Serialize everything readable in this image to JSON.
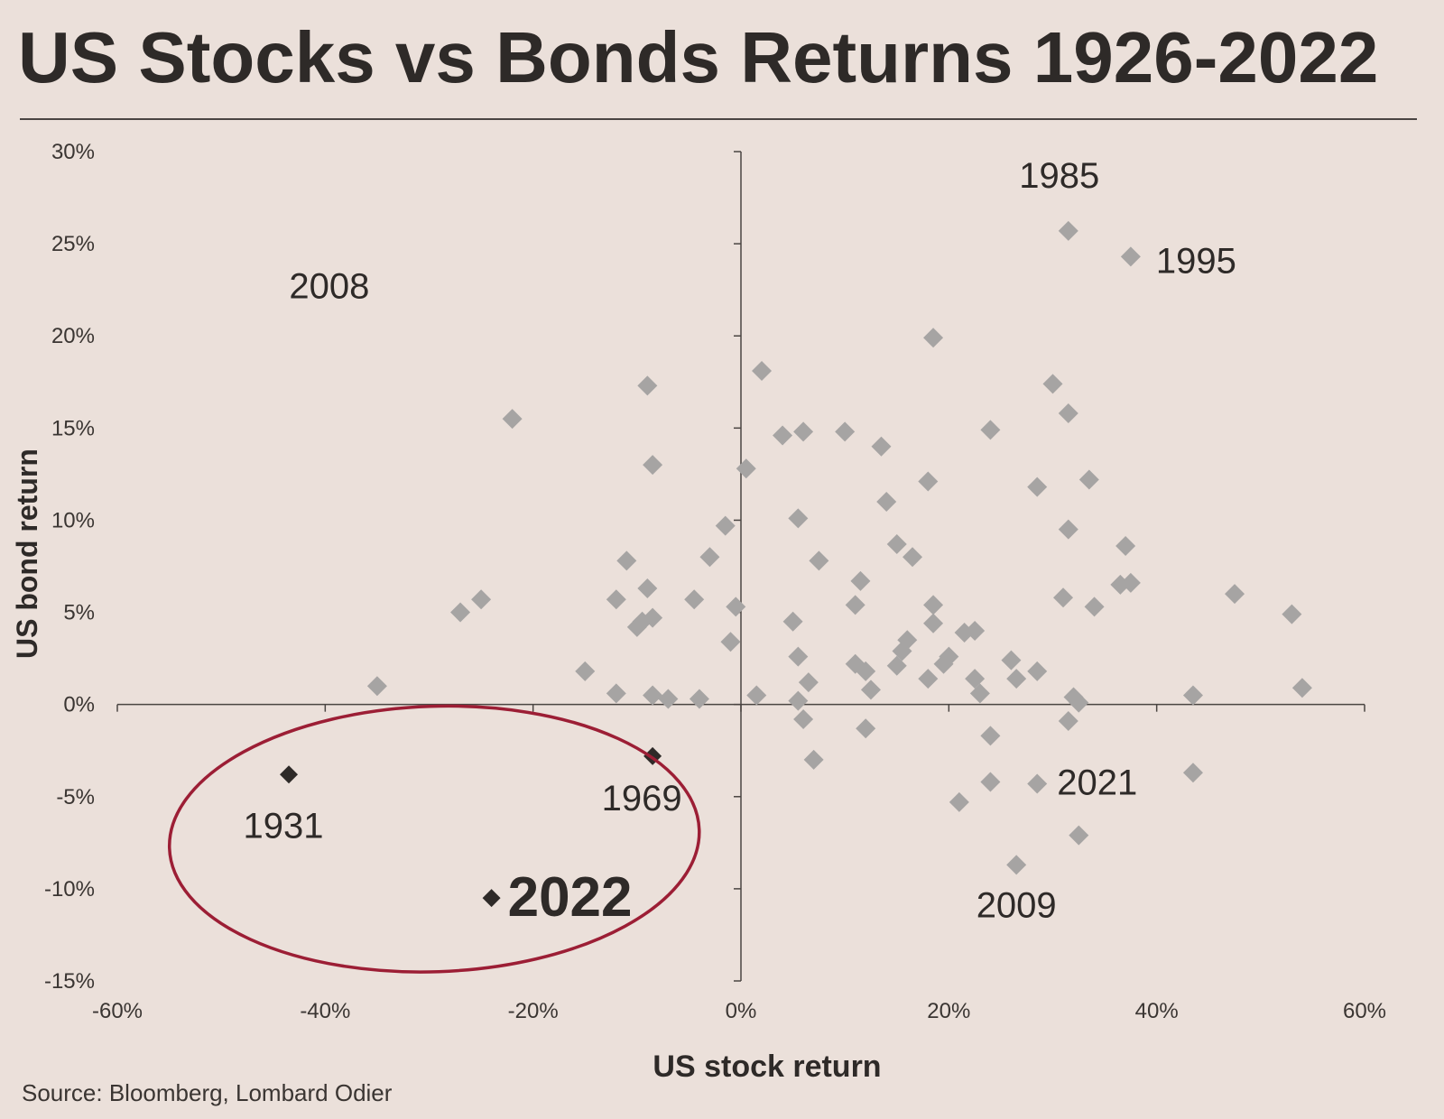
{
  "chart_data": {
    "type": "scatter",
    "title": "US Stocks vs Bonds Returns 1926-2022",
    "xlabel": "US stock return",
    "ylabel": "US bond return",
    "source": "Source: Bloomberg, Lombard Odier",
    "xlim": [
      -60,
      60
    ],
    "ylim": [
      -15,
      30
    ],
    "x_ticks": [
      {
        "value": -60,
        "label": "-60%"
      },
      {
        "value": -40,
        "label": "-40%"
      },
      {
        "value": -20,
        "label": "-20%"
      },
      {
        "value": 0,
        "label": "0%"
      },
      {
        "value": 20,
        "label": "20%"
      },
      {
        "value": 40,
        "label": "40%"
      },
      {
        "value": 60,
        "label": "60%"
      }
    ],
    "y_ticks": [
      {
        "value": 30,
        "label": "30%"
      },
      {
        "value": 25,
        "label": "25%"
      },
      {
        "value": 20,
        "label": "20%"
      },
      {
        "value": 15,
        "label": "15%"
      },
      {
        "value": 10,
        "label": "10%"
      },
      {
        "value": 5,
        "label": "5%"
      },
      {
        "value": 0,
        "label": "0%"
      },
      {
        "value": -5,
        "label": "-5%"
      },
      {
        "value": -10,
        "label": "-10%"
      },
      {
        "value": -15,
        "label": "-15%"
      }
    ],
    "grid": false,
    "colors": {
      "background": "#ebe0da",
      "point": "#a6a4a3",
      "highlight": "#2e2a28",
      "ellipse": "#9c1e35",
      "axis": "#4a4542"
    },
    "series": [
      {
        "points": [
          [
            -35,
            1.0
          ],
          [
            -27,
            5.0
          ],
          [
            -25,
            5.7
          ],
          [
            -22,
            15.5
          ],
          [
            -15,
            1.8
          ],
          [
            -12,
            0.6
          ],
          [
            -12,
            5.7
          ],
          [
            -11,
            7.8
          ],
          [
            -10,
            4.2
          ],
          [
            -9.5,
            4.5
          ],
          [
            -9,
            17.3
          ],
          [
            -9,
            6.3
          ],
          [
            -8.5,
            4.7
          ],
          [
            -8.5,
            13.0
          ],
          [
            -8.5,
            0.5
          ],
          [
            -7,
            0.3
          ],
          [
            -4.5,
            5.7
          ],
          [
            -4,
            0.3
          ],
          [
            -3,
            8.0
          ],
          [
            -1.5,
            9.7
          ],
          [
            -1,
            3.4
          ],
          [
            -0.5,
            5.3
          ],
          [
            0.5,
            12.8
          ],
          [
            1.5,
            0.5
          ],
          [
            2,
            18.1
          ],
          [
            4,
            14.6
          ],
          [
            5,
            4.5
          ],
          [
            5.5,
            2.6
          ],
          [
            5.5,
            0.2
          ],
          [
            5.5,
            10.1
          ],
          [
            6,
            -0.8
          ],
          [
            6,
            14.8
          ],
          [
            6.5,
            1.2
          ],
          [
            7,
            -3.0
          ],
          [
            7.5,
            7.8
          ],
          [
            10,
            14.8
          ],
          [
            11,
            5.4
          ],
          [
            11,
            2.2
          ],
          [
            11.5,
            6.7
          ],
          [
            12,
            -1.3
          ],
          [
            12,
            1.8
          ],
          [
            12.5,
            0.8
          ],
          [
            13.5,
            14.0
          ],
          [
            14,
            11.0
          ],
          [
            15,
            8.7
          ],
          [
            15,
            2.1
          ],
          [
            15.5,
            2.9
          ],
          [
            16,
            3.5
          ],
          [
            16.5,
            8.0
          ],
          [
            18,
            12.1
          ],
          [
            18,
            1.4
          ],
          [
            18.5,
            4.4
          ],
          [
            18.5,
            5.4
          ],
          [
            18.5,
            19.9
          ],
          [
            19.5,
            2.2
          ],
          [
            20,
            2.6
          ],
          [
            21,
            -5.3
          ],
          [
            21.5,
            3.9
          ],
          [
            22.5,
            4.0
          ],
          [
            22.5,
            1.4
          ],
          [
            23,
            0.6
          ],
          [
            24,
            -1.7
          ],
          [
            24,
            -4.2
          ],
          [
            24,
            14.9
          ],
          [
            26,
            2.4
          ],
          [
            26.5,
            1.4
          ],
          [
            26.5,
            -8.7
          ],
          [
            28.5,
            -4.3
          ],
          [
            28.5,
            11.8
          ],
          [
            28.5,
            1.8
          ],
          [
            30,
            17.4
          ],
          [
            31,
            5.8
          ],
          [
            31.5,
            9.5
          ],
          [
            31.5,
            15.8
          ],
          [
            31.5,
            25.7
          ],
          [
            31.5,
            -0.9
          ],
          [
            32,
            0.4
          ],
          [
            32.5,
            0.1
          ],
          [
            32.5,
            -7.1
          ],
          [
            33.5,
            12.2
          ],
          [
            34,
            5.3
          ],
          [
            36.5,
            6.5
          ],
          [
            37,
            8.6
          ],
          [
            37.5,
            6.6
          ],
          [
            37.5,
            24.3
          ],
          [
            43.5,
            -3.7
          ],
          [
            43.5,
            0.5
          ],
          [
            47.5,
            6.0
          ],
          [
            53,
            4.9
          ],
          [
            54,
            0.9
          ]
        ]
      },
      {
        "points": [
          [
            -43.5,
            -3.8
          ],
          [
            -8.5,
            -2.8
          ],
          [
            -24,
            -10.5
          ]
        ]
      }
    ],
    "annotations": [
      {
        "text": "2008",
        "x": -37,
        "y": 19.7
      },
      {
        "text": "1985",
        "x": 31.5,
        "y": 25.7
      },
      {
        "text": "1995",
        "x": 37.5,
        "y": 24.3
      },
      {
        "text": "1931",
        "x": -43.5,
        "y": -3.8
      },
      {
        "text": "1969",
        "x": -8.5,
        "y": -2.8
      },
      {
        "text": "2022",
        "x": -24,
        "y": -10.5,
        "emphasis": true
      },
      {
        "text": "2021",
        "x": 28.5,
        "y": -4.3
      },
      {
        "text": "2009",
        "x": 26.5,
        "y": -8.7
      }
    ],
    "highlight_ellipse": {
      "center_x": -29.5,
      "center_y": -7.3,
      "radius_x": 25.5,
      "radius_y": 7.2
    }
  }
}
